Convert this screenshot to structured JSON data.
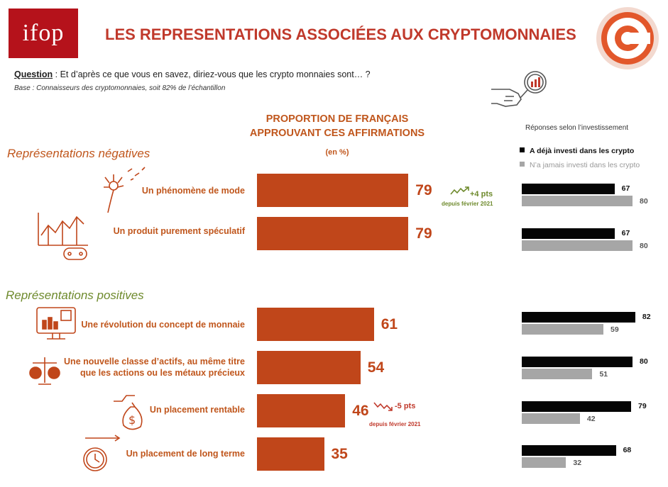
{
  "header": {
    "logo_text": "ifop",
    "title": "LES REPRESENTATIONS ASSOCIÉES AUX CRYPTOMONNAIES"
  },
  "question": {
    "label": "Question",
    "text": " : Et d’après ce que vous en savez, diriez-vous que les crypto monnaies sont… ?",
    "base": "Base : Connaisseurs des cryptomonnaies, soit 82% de l’échantillon"
  },
  "chart_data": {
    "type": "bar",
    "title": "PROPORTION DE FRANÇAIS APPROUVANT CES AFFIRMATIONS",
    "title_line1": "PROPORTION DE FRANÇAIS",
    "title_line2": "APPROUVANT CES AFFIRMATIONS",
    "unit": "(en %)",
    "sections": [
      {
        "title": "Représentations négatives",
        "color": "#c0561c"
      },
      {
        "title": "Représentations positives",
        "color": "#6e8a2c"
      }
    ],
    "categories": [
      "Un phénomène de mode",
      "Un produit purement spéculatif",
      "Une révolution du concept de monnaie",
      "Une nouvelle classe d’actifs, au même titre que les actions ou les métaux précieux",
      "Un placement rentable",
      "Un placement de long terme"
    ],
    "values": [
      79,
      79,
      61,
      54,
      46,
      35
    ],
    "annotations": [
      {
        "category": "Un phénomène de mode",
        "change": "+4 pts",
        "note": "depuis février 2021",
        "direction": "up"
      },
      {
        "category": "Un placement rentable",
        "change": "-5 pts",
        "note": "depuis février 2021",
        "direction": "down"
      }
    ],
    "series_color": "#c0461a",
    "breakdown": {
      "title": "Réponses selon l’investissement",
      "series": [
        {
          "name": "A déjà investi dans les crypto",
          "color": "#050505",
          "values": [
            67,
            67,
            82,
            80,
            79,
            68
          ]
        },
        {
          "name": "N’a jamais investi dans les crypto",
          "color": "#a6a6a6",
          "values": [
            80,
            80,
            59,
            51,
            42,
            32
          ]
        }
      ]
    }
  }
}
